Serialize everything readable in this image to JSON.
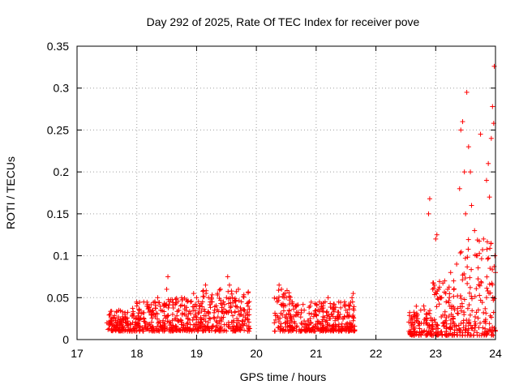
{
  "chart_data": {
    "type": "scatter",
    "title": "Day 292 of 2025, Rate Of TEC Index for receiver pove",
    "xlabel": "GPS time / hours",
    "ylabel": "ROTI / TECUs",
    "xlim": [
      17,
      24
    ],
    "ylim": [
      0,
      0.35
    ],
    "x_ticks": [
      17,
      18,
      19,
      20,
      21,
      22,
      23,
      24
    ],
    "x_tick_labels": [
      "17",
      "18",
      "19",
      "20",
      "21",
      "22",
      "23",
      "24"
    ],
    "y_ticks": [
      0,
      0.05,
      0.1,
      0.15,
      0.2,
      0.25,
      0.3,
      0.35
    ],
    "y_tick_labels": [
      "0",
      "0.05",
      "0.1",
      "0.15",
      "0.2",
      "0.25",
      "0.3",
      "0.35"
    ],
    "grid": true,
    "marker": "plus",
    "color": "#ff0000",
    "series": [
      {
        "points": [
          [
            17.5,
            0.02
          ],
          [
            17.55,
            0.03
          ],
          [
            17.6,
            0.025
          ],
          [
            17.65,
            0.015
          ],
          [
            17.7,
            0.035
          ],
          [
            17.75,
            0.02
          ],
          [
            17.8,
            0.03
          ],
          [
            17.85,
            0.022
          ],
          [
            17.9,
            0.018
          ],
          [
            17.95,
            0.028
          ],
          [
            18.0,
            0.04
          ],
          [
            18.05,
            0.025
          ],
          [
            18.1,
            0.032
          ],
          [
            18.15,
            0.02
          ],
          [
            18.2,
            0.038
          ],
          [
            18.25,
            0.03
          ],
          [
            18.3,
            0.045
          ],
          [
            18.35,
            0.05
          ],
          [
            18.4,
            0.035
          ],
          [
            18.45,
            0.04
          ],
          [
            18.5,
            0.06
          ],
          [
            18.52,
            0.075
          ],
          [
            18.55,
            0.045
          ],
          [
            18.6,
            0.03
          ],
          [
            18.65,
            0.048
          ],
          [
            18.7,
            0.035
          ],
          [
            18.75,
            0.05
          ],
          [
            18.8,
            0.04
          ],
          [
            18.85,
            0.025
          ],
          [
            18.9,
            0.045
          ],
          [
            18.95,
            0.055
          ],
          [
            19.0,
            0.05
          ],
          [
            19.05,
            0.04
          ],
          [
            19.1,
            0.045
          ],
          [
            19.15,
            0.065
          ],
          [
            19.2,
            0.05
          ],
          [
            19.25,
            0.045
          ],
          [
            19.3,
            0.035
          ],
          [
            19.35,
            0.055
          ],
          [
            19.4,
            0.06
          ],
          [
            19.45,
            0.045
          ],
          [
            19.5,
            0.05
          ],
          [
            19.52,
            0.075
          ],
          [
            19.55,
            0.065
          ],
          [
            19.6,
            0.05
          ],
          [
            19.65,
            0.04
          ],
          [
            19.7,
            0.06
          ],
          [
            19.75,
            0.045
          ],
          [
            19.8,
            0.035
          ],
          [
            19.85,
            0.025
          ],
          [
            20.3,
            0.02
          ],
          [
            20.35,
            0.045
          ],
          [
            20.38,
            0.065
          ],
          [
            20.42,
            0.06
          ],
          [
            20.45,
            0.04
          ],
          [
            20.5,
            0.05
          ],
          [
            20.55,
            0.035
          ],
          [
            20.6,
            0.045
          ],
          [
            20.65,
            0.04
          ],
          [
            20.7,
            0.03
          ],
          [
            20.8,
            0.035
          ],
          [
            20.9,
            0.025
          ],
          [
            21.0,
            0.03
          ],
          [
            21.05,
            0.02
          ],
          [
            21.1,
            0.035
          ],
          [
            21.15,
            0.045
          ],
          [
            21.2,
            0.05
          ],
          [
            21.25,
            0.03
          ],
          [
            21.3,
            0.035
          ],
          [
            21.35,
            0.025
          ],
          [
            21.4,
            0.03
          ],
          [
            21.45,
            0.025
          ],
          [
            21.5,
            0.035
          ],
          [
            21.55,
            0.04
          ],
          [
            21.6,
            0.05
          ],
          [
            21.62,
            0.055
          ],
          [
            22.6,
            0.015
          ],
          [
            22.65,
            0.02
          ],
          [
            22.7,
            0.025
          ],
          [
            22.75,
            0.035
          ],
          [
            22.8,
            0.04
          ],
          [
            22.85,
            0.03
          ],
          [
            22.88,
            0.15
          ],
          [
            22.9,
            0.168
          ],
          [
            22.95,
            0.06
          ],
          [
            23.0,
            0.12
          ],
          [
            23.02,
            0.125
          ],
          [
            23.05,
            0.06
          ],
          [
            23.1,
            0.05
          ],
          [
            23.15,
            0.07
          ],
          [
            23.2,
            0.06
          ],
          [
            23.25,
            0.08
          ],
          [
            23.3,
            0.07
          ],
          [
            23.35,
            0.09
          ],
          [
            23.4,
            0.18
          ],
          [
            23.42,
            0.25
          ],
          [
            23.45,
            0.26
          ],
          [
            23.48,
            0.2
          ],
          [
            23.5,
            0.15
          ],
          [
            23.52,
            0.295
          ],
          [
            23.55,
            0.23
          ],
          [
            23.58,
            0.2
          ],
          [
            23.6,
            0.16
          ],
          [
            23.65,
            0.13
          ],
          [
            23.7,
            0.1
          ],
          [
            23.75,
            0.245
          ],
          [
            23.8,
            0.12
          ],
          [
            23.85,
            0.19
          ],
          [
            23.88,
            0.21
          ],
          [
            23.9,
            0.17
          ],
          [
            23.93,
            0.24
          ],
          [
            23.95,
            0.278
          ],
          [
            23.97,
            0.258
          ],
          [
            23.98,
            0.326
          ],
          [
            23.99,
            0.1
          ],
          [
            24.0,
            0.08
          ]
        ],
        "envelope": [
          {
            "x_range": [
              17.5,
              17.9
            ],
            "y_range": [
              0.01,
              0.035
            ]
          },
          {
            "x_range": [
              17.9,
              18.5
            ],
            "y_range": [
              0.01,
              0.045
            ]
          },
          {
            "x_range": [
              18.5,
              19.0
            ],
            "y_range": [
              0.01,
              0.05
            ]
          },
          {
            "x_range": [
              19.0,
              19.9
            ],
            "y_range": [
              0.01,
              0.06
            ]
          },
          {
            "x_range": [
              20.3,
              20.6
            ],
            "y_range": [
              0.01,
              0.06
            ]
          },
          {
            "x_range": [
              20.6,
              21.65
            ],
            "y_range": [
              0.01,
              0.045
            ]
          },
          {
            "x_range": [
              22.55,
              22.95
            ],
            "y_range": [
              0.005,
              0.04
            ]
          },
          {
            "x_range": [
              22.95,
              23.4
            ],
            "y_range": [
              0.005,
              0.07
            ]
          },
          {
            "x_range": [
              23.4,
              24.0
            ],
            "y_range": [
              0.005,
              0.12
            ]
          }
        ]
      }
    ]
  }
}
